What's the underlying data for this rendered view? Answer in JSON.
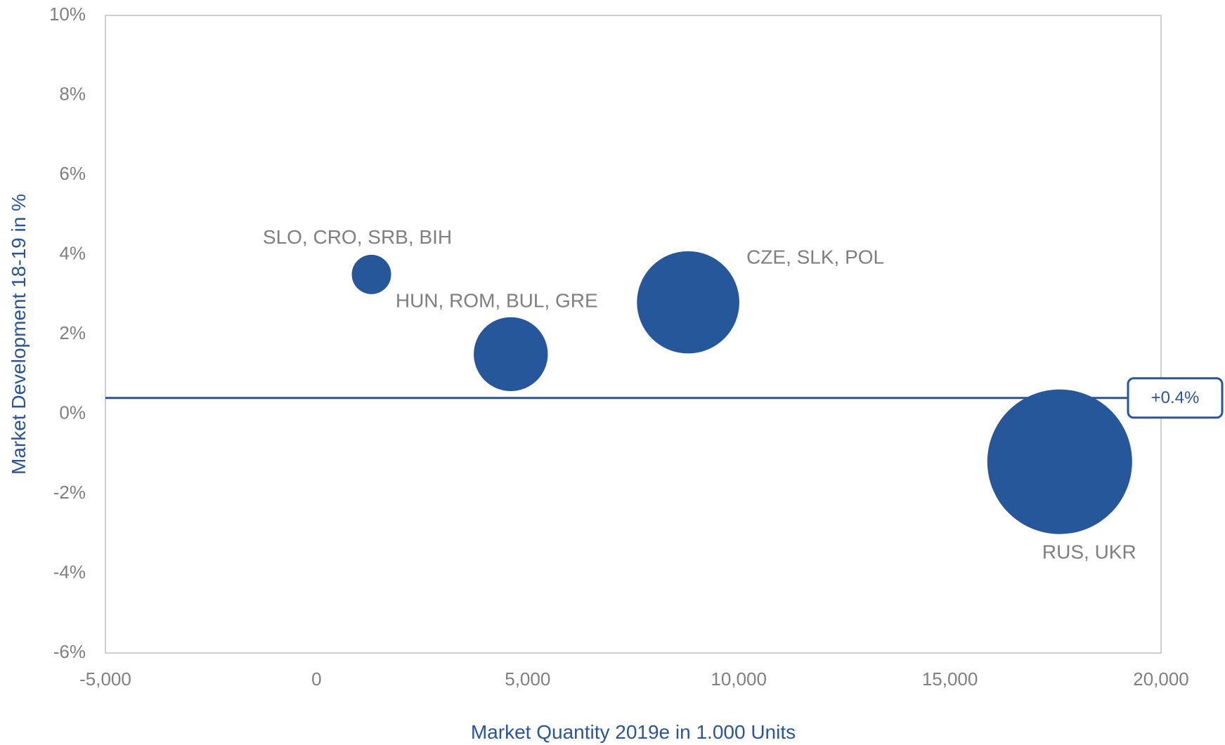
{
  "colors": {
    "bubble": "#26579b",
    "axis_title": "#2a5599",
    "tick_label": "#7f7f7f",
    "plot_border": "#bfbfbf",
    "reference_line": "#26579b"
  },
  "chart_data": {
    "type": "scatter",
    "subtype": "bubble",
    "title": "",
    "xlabel": "Market Quantity 2019e in 1.000 Units",
    "ylabel": "Market  Development 18-19  in %",
    "xlim": [
      -5000,
      20000
    ],
    "ylim": [
      -6,
      10
    ],
    "x_ticks": [
      -5000,
      0,
      5000,
      10000,
      15000,
      20000
    ],
    "x_tick_labels": [
      "-5,000",
      "0",
      "5,000",
      "10,000",
      "15,000",
      "20,000"
    ],
    "y_ticks": [
      -6,
      -4,
      -2,
      0,
      2,
      4,
      6,
      8,
      10
    ],
    "y_tick_labels": [
      "-6%",
      "-4%",
      "-2%",
      "0%",
      "2%",
      "4%",
      "6%",
      "8%",
      "10%"
    ],
    "grid": false,
    "legend": "none",
    "series": [
      {
        "points": [
          {
            "label": "SLO, CRO, SRB, BIH",
            "x": 1300,
            "y": 3.5,
            "size": 1300
          },
          {
            "label": "HUN, ROM, BUL, GRE",
            "x": 4600,
            "y": 1.5,
            "size": 4600
          },
          {
            "label": "CZE, SLK, POL",
            "x": 8800,
            "y": 2.8,
            "size": 8800
          },
          {
            "label": "RUS, UKR",
            "x": 17600,
            "y": -1.2,
            "size": 17600
          }
        ]
      }
    ],
    "reference_line": {
      "y": 0.4,
      "label": "+0.4%"
    }
  }
}
